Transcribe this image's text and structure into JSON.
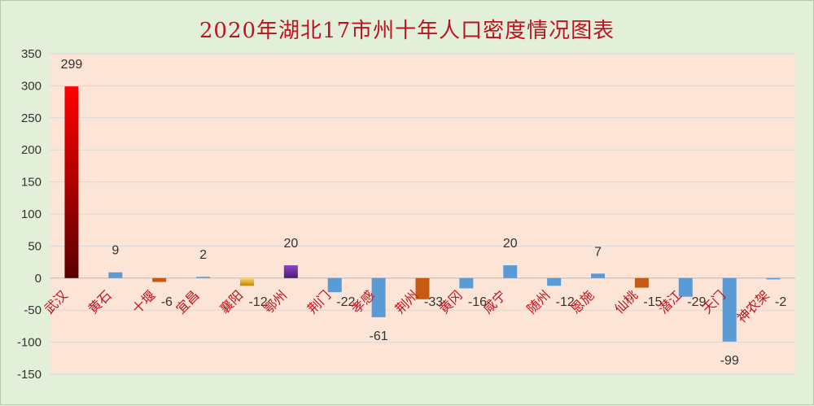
{
  "chart_data": {
    "type": "bar",
    "title": "2020年湖北17市州十年人口密度情况图表",
    "xlabel": "",
    "ylabel": "",
    "ylim": [
      -150,
      350
    ],
    "ticks": [
      350,
      300,
      250,
      200,
      150,
      100,
      50,
      0,
      -50,
      -100,
      -150
    ],
    "grid": true,
    "legend": "none",
    "categories": [
      "武汉",
      "黄石",
      "十堰",
      "宜昌",
      "襄阳",
      "鄂州",
      "荆门",
      "孝感",
      "荆州",
      "黄冈",
      "咸宁",
      "随州",
      "恩施",
      "仙桃",
      "潜江",
      "天门",
      "神农架"
    ],
    "values": [
      299,
      9,
      -6,
      2,
      -12,
      20,
      -22,
      -61,
      -33,
      -16,
      20,
      -12,
      7,
      -15,
      -29,
      -99,
      -2
    ],
    "value_labels": [
      "299",
      "9",
      "-6",
      "2",
      "-12",
      "20",
      "-22",
      "-61",
      "-33",
      "-16",
      "20",
      "-12",
      "7",
      "-15",
      "-29",
      "-99",
      "-2"
    ],
    "colors": [
      "#c00000",
      "#5b9bd5",
      "#c55a11",
      "#5b9bd5",
      "#bf9000",
      "#7030a0",
      "#5b9bd5",
      "#5b9bd5",
      "#c55a11",
      "#5b9bd5",
      "#5b9bd5",
      "#5b9bd5",
      "#5b9bd5",
      "#c55a11",
      "#5b9bd5",
      "#5b9bd5",
      "#5b9bd5"
    ],
    "plot_background": "#fce4d6",
    "grid_color": "#d9d9d9",
    "label_color": "#c0121e"
  }
}
